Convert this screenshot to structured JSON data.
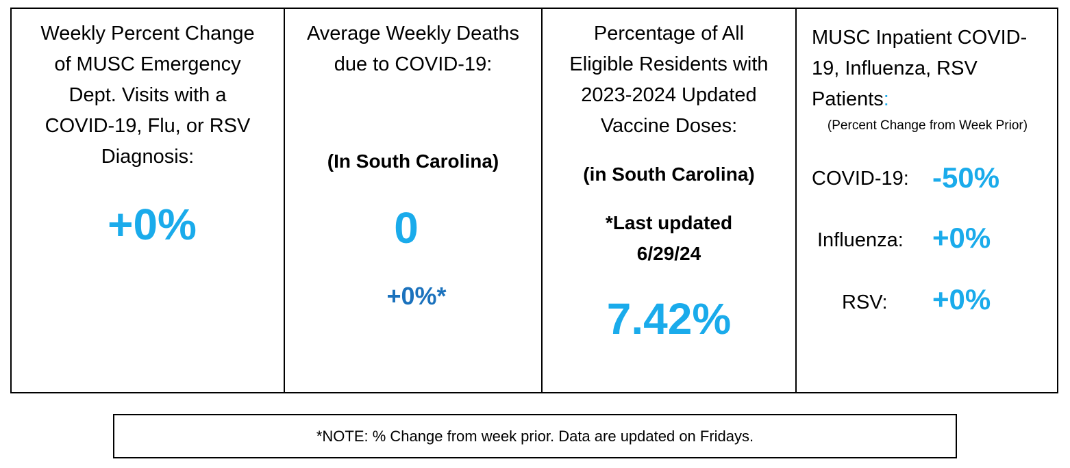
{
  "panels": {
    "ed_visits": {
      "title_lines": [
        "Weekly Percent Change",
        "of MUSC Emergency",
        "Dept. Visits with a",
        "COVID-19, Flu, or RSV",
        "Diagnosis:"
      ],
      "value": "+0%"
    },
    "deaths": {
      "title_lines": [
        "Average Weekly Deaths",
        "due to COVID-19:"
      ],
      "region": "(In South Carolina)",
      "value": "0",
      "change": "+0%*"
    },
    "vaccine": {
      "title_lines": [
        "Percentage of All",
        "Eligible Residents with",
        "2023-2024 Updated",
        "Vaccine Doses:"
      ],
      "region": "(in South Carolina)",
      "updated_lines": [
        "*Last updated",
        "6/29/24"
      ],
      "value": "7.42%"
    },
    "inpatient": {
      "title_lines": [
        "MUSC Inpatient COVID-",
        "19, Influenza, RSV",
        "Patients"
      ],
      "title_colon": ":",
      "subtitle": "(Percent Change from Week Prior)",
      "rows": [
        {
          "label": "COVID-19:",
          "value": "-50%"
        },
        {
          "label": "Influenza:",
          "value": "+0%"
        },
        {
          "label": "RSV:",
          "value": "+0%"
        }
      ]
    }
  },
  "note": "*NOTE: % Change from week prior. Data are updated on Fridays.",
  "colors": {
    "accent": "#1aabeb",
    "accent_dark": "#1b72bd",
    "border": "#000000"
  }
}
